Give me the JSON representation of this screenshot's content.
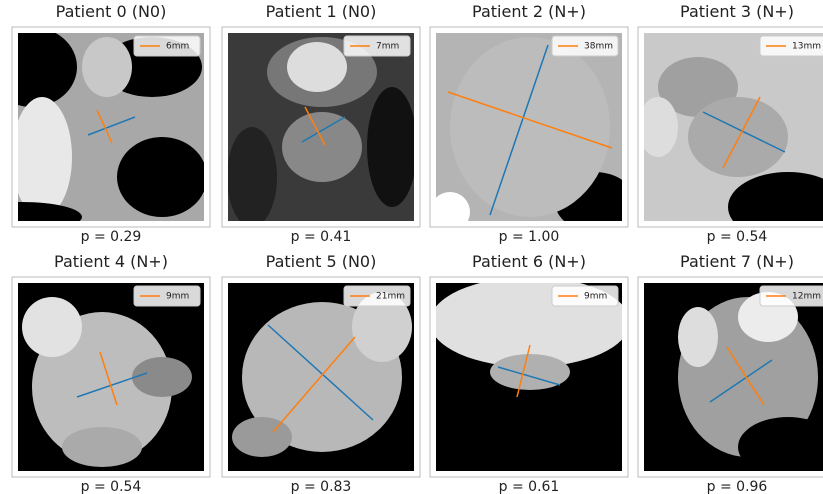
{
  "panels": [
    {
      "title": "Patient 0 (N0)",
      "legend": "6mm",
      "p_label": "p = 0.29"
    },
    {
      "title": "Patient 1 (N0)",
      "legend": "7mm",
      "p_label": "p = 0.41"
    },
    {
      "title": "Patient 2 (N+)",
      "legend": "38mm",
      "p_label": "p = 1.00"
    },
    {
      "title": "Patient 3 (N+)",
      "legend": "13mm",
      "p_label": "p = 0.54"
    },
    {
      "title": "Patient 4 (N+)",
      "legend": "9mm",
      "p_label": "p = 0.54"
    },
    {
      "title": "Patient 5 (N0)",
      "legend": "21mm",
      "p_label": "p = 0.83"
    },
    {
      "title": "Patient 6 (N+)",
      "legend": "9mm",
      "p_label": "p = 0.61"
    },
    {
      "title": "Patient 7 (N+)",
      "legend": "12mm",
      "p_label": "p = 0.96"
    }
  ]
}
